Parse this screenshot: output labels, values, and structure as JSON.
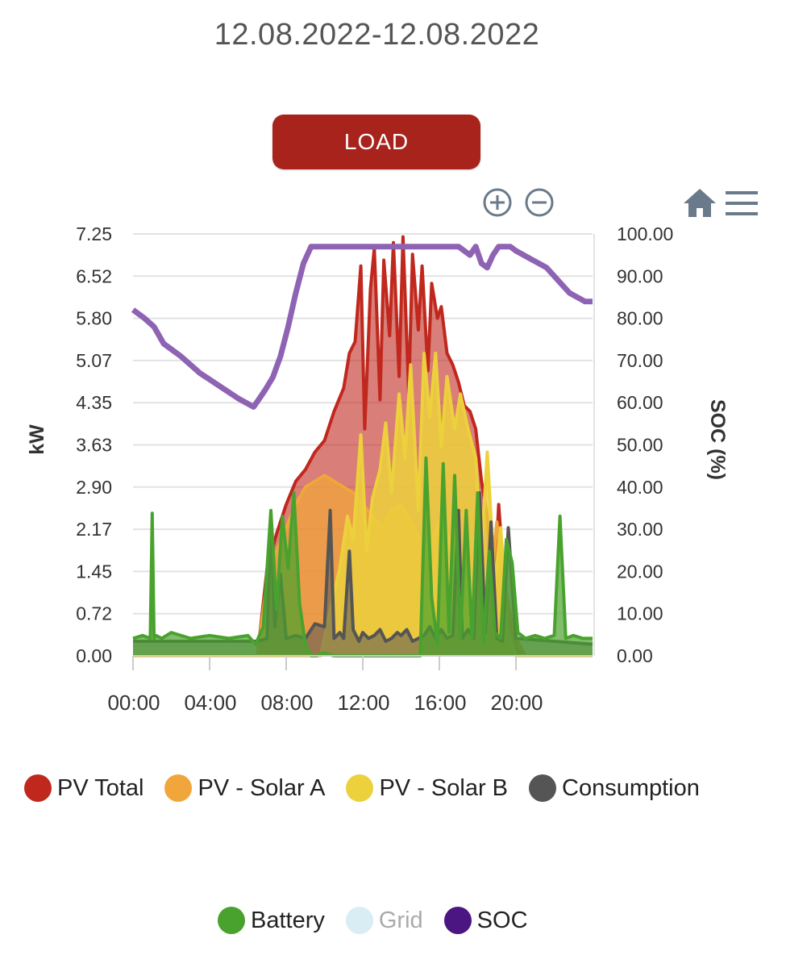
{
  "header": {
    "date_range": "12.08.2022-12.08.2022",
    "load_label": "LOAD"
  },
  "toolbar": {
    "zoom_in": "zoom-in-icon",
    "zoom_out": "zoom-out-icon",
    "home": "home-icon",
    "menu": "menu-icon"
  },
  "chart_data": {
    "type": "area",
    "title": "12.08.2022-12.08.2022",
    "xlabel": "",
    "ylabel": "kW",
    "y2label": "SOC (%)",
    "xlim": [
      0,
      24
    ],
    "ylim": [
      0,
      7.25
    ],
    "y2lim": [
      0,
      100
    ],
    "x_ticks": [
      "00:00",
      "04:00",
      "08:00",
      "12:00",
      "16:00",
      "20:00"
    ],
    "y_ticks": [
      "0.00",
      "0.72",
      "1.45",
      "2.17",
      "2.90",
      "3.63",
      "4.35",
      "5.07",
      "5.80",
      "6.52",
      "7.25"
    ],
    "y2_ticks": [
      "0.00",
      "10.00",
      "20.00",
      "30.00",
      "40.00",
      "50.00",
      "60.00",
      "70.00",
      "80.00",
      "90.00",
      "100.00"
    ],
    "grid": true,
    "legend_position": "bottom",
    "colors": {
      "pv_total": "#c0281e",
      "solar_a": "#f0a63a",
      "solar_b": "#ecd03c",
      "consumption": "#555555",
      "battery": "#4aa22e",
      "grid": "#d9edf5",
      "soc": "#8e63b4"
    },
    "series": [
      {
        "name": "PV Total",
        "key": "pv_total",
        "axis": "left",
        "x": [
          0,
          6.5,
          7,
          7.5,
          8,
          8.5,
          9,
          9.5,
          10,
          10.5,
          11,
          11.3,
          11.6,
          11.9,
          12.1,
          12.4,
          12.6,
          12.9,
          13.1,
          13.4,
          13.6,
          13.9,
          14.1,
          14.4,
          14.6,
          14.9,
          15.1,
          15.4,
          15.6,
          15.9,
          16.1,
          16.4,
          16.7,
          17,
          17.3,
          17.6,
          17.9,
          18.2,
          18.5,
          18.8,
          19.1,
          19.4,
          19.8,
          20.1,
          20.5,
          24
        ],
        "values": [
          0,
          0,
          1.5,
          2.1,
          2.6,
          3.0,
          3.2,
          3.5,
          3.7,
          4.2,
          4.6,
          5.2,
          5.4,
          6.7,
          3.9,
          6.3,
          7.0,
          4.4,
          6.8,
          5.5,
          7.1,
          4.8,
          7.2,
          4.5,
          6.9,
          5.6,
          6.7,
          4.9,
          6.4,
          5.8,
          6.0,
          5.2,
          5.0,
          4.7,
          4.3,
          4.2,
          3.9,
          3.0,
          2.4,
          0.6,
          2.6,
          1.2,
          0.5,
          0.1,
          0,
          0
        ]
      },
      {
        "name": "PV - Solar A",
        "key": "solar_a",
        "axis": "left",
        "x": [
          0,
          6.5,
          7,
          7.5,
          8,
          8.5,
          9,
          9.5,
          10,
          10.5,
          11,
          11.5,
          12,
          12.5,
          13,
          13.5,
          14,
          14.5,
          15,
          15.5,
          16,
          16.5,
          17,
          17.5,
          18,
          18.5,
          19,
          19.5,
          20,
          20.5,
          24
        ],
        "values": [
          0,
          0,
          1.3,
          1.8,
          2.2,
          2.6,
          2.9,
          3.0,
          3.1,
          3.0,
          2.9,
          2.8,
          2.6,
          2.4,
          2.2,
          2.5,
          2.6,
          2.3,
          2.0,
          1.9,
          2.3,
          2.0,
          1.6,
          1.2,
          0.8,
          0.6,
          2.3,
          1.0,
          0.3,
          0,
          0
        ]
      },
      {
        "name": "PV - Solar B",
        "key": "solar_b",
        "axis": "left",
        "x": [
          0,
          9.8,
          10.3,
          10.8,
          11.2,
          11.5,
          11.9,
          12.2,
          12.5,
          12.9,
          13.2,
          13.5,
          13.9,
          14.2,
          14.5,
          14.9,
          15.2,
          15.5,
          15.8,
          16.1,
          16.4,
          16.8,
          17.1,
          17.5,
          17.9,
          18.2,
          18.5,
          18.9,
          19.2,
          19.6,
          20,
          24
        ],
        "values": [
          0,
          0,
          0.8,
          1.5,
          2.4,
          2.0,
          3.8,
          1.8,
          2.7,
          3.2,
          4.0,
          2.8,
          4.5,
          3.4,
          5.0,
          2.5,
          5.2,
          4.1,
          5.2,
          3.6,
          4.8,
          3.9,
          4.5,
          3.9,
          3.4,
          1.8,
          3.5,
          1.2,
          2.2,
          0.4,
          0,
          0
        ]
      },
      {
        "name": "Consumption",
        "key": "consumption",
        "axis": "left",
        "x": [
          0,
          6.5,
          7,
          7.2,
          7.4,
          7.7,
          8,
          8.5,
          9,
          9.5,
          10,
          10.3,
          10.5,
          10.8,
          11,
          11.3,
          11.5,
          11.8,
          12,
          12.3,
          12.6,
          12.9,
          13.2,
          13.5,
          13.8,
          14,
          14.3,
          14.6,
          14.9,
          15.2,
          15.5,
          15.8,
          16.1,
          16.4,
          16.7,
          17,
          17.2,
          17.5,
          17.8,
          18.1,
          18.4,
          18.7,
          19,
          19.3,
          19.6,
          20,
          24
        ],
        "values": [
          0.25,
          0.25,
          0.3,
          2.45,
          0.5,
          1.4,
          0.3,
          0.35,
          0.3,
          0.55,
          0.5,
          2.5,
          0.3,
          0.4,
          0.3,
          1.8,
          0.45,
          0.25,
          0.4,
          0.3,
          0.35,
          0.45,
          0.25,
          0.3,
          0.4,
          0.35,
          0.45,
          0.25,
          0.3,
          0.35,
          0.5,
          0.3,
          0.45,
          0.3,
          0.35,
          2.5,
          0.3,
          0.45,
          0.3,
          2.8,
          0.4,
          2.3,
          0.3,
          0.25,
          2.2,
          0.3,
          0.2
        ]
      },
      {
        "name": "Battery",
        "key": "battery",
        "axis": "left",
        "x": [
          0,
          0.5,
          0.9,
          1.0,
          1.1,
          1.2,
          1.5,
          2,
          3,
          4,
          5,
          6,
          6.4,
          6.8,
          7.2,
          7.5,
          7.8,
          8.1,
          8.4,
          8.7,
          9,
          9.3,
          9.6,
          9.9,
          10.5,
          11,
          11.5,
          12,
          12.5,
          13,
          13.5,
          14,
          14.5,
          15,
          15.3,
          15.6,
          15.9,
          16.2,
          16.5,
          16.8,
          17.1,
          17.4,
          17.7,
          18,
          18.3,
          18.6,
          18.9,
          19.2,
          19.5,
          19.8,
          20.1,
          20.5,
          21,
          21.5,
          22,
          22.3,
          22.6,
          23,
          23.5,
          24
        ],
        "values": [
          0.3,
          0.35,
          0.3,
          2.45,
          0.3,
          0.35,
          0.3,
          0.4,
          0.3,
          0.35,
          0.3,
          0.35,
          0.2,
          0.5,
          2.5,
          0.8,
          2.4,
          1.5,
          2.8,
          0.9,
          0.2,
          0,
          0,
          0.05,
          0,
          0,
          0,
          0,
          0,
          0,
          0,
          0,
          0,
          0,
          3.4,
          1.0,
          0.2,
          3.3,
          0.4,
          3.1,
          0.3,
          2.5,
          0.3,
          2.8,
          0.2,
          1.8,
          0.4,
          0.3,
          2.0,
          1.6,
          0.4,
          0.3,
          0.35,
          0.3,
          0.35,
          2.4,
          0.3,
          0.35,
          0.3,
          0.3
        ]
      },
      {
        "name": "Grid",
        "key": "grid",
        "axis": "left",
        "hidden": true,
        "x": [],
        "values": []
      },
      {
        "name": "SOC",
        "key": "soc",
        "axis": "right",
        "x": [
          0,
          0.6,
          1.1,
          1.6,
          2.5,
          3.5,
          4.5,
          5.5,
          6.3,
          6.6,
          6.9,
          7.3,
          7.7,
          8.1,
          8.5,
          8.9,
          9.3,
          10,
          11,
          12,
          13,
          14,
          15,
          16,
          17,
          17.6,
          17.9,
          18.2,
          18.5,
          18.8,
          19.1,
          19.4,
          19.7,
          20,
          20.4,
          20.8,
          21.2,
          21.6,
          22,
          22.4,
          22.8,
          23.2,
          23.6,
          24
        ],
        "values": [
          82,
          80,
          78,
          74,
          71,
          67,
          64,
          61,
          59,
          61,
          63,
          66,
          71,
          78,
          86,
          93,
          97,
          97,
          97,
          97,
          97,
          97,
          97,
          97,
          97,
          95,
          97,
          93,
          92,
          95,
          97,
          97,
          97,
          96,
          95,
          94,
          93,
          92,
          90,
          88,
          86,
          85,
          84,
          84
        ]
      }
    ]
  },
  "legend": {
    "row1": [
      {
        "label": "PV Total",
        "key": "pv_total"
      },
      {
        "label": "PV - Solar A",
        "key": "solar_a"
      },
      {
        "label": "PV - Solar B",
        "key": "solar_b"
      },
      {
        "label": "Consumption",
        "key": "consumption"
      }
    ],
    "row2": [
      {
        "label": "Battery",
        "key": "battery"
      },
      {
        "label": "Grid",
        "key": "grid",
        "hidden": true
      },
      {
        "label": "SOC",
        "key": "soc",
        "swatch": "#4b1582"
      }
    ]
  }
}
